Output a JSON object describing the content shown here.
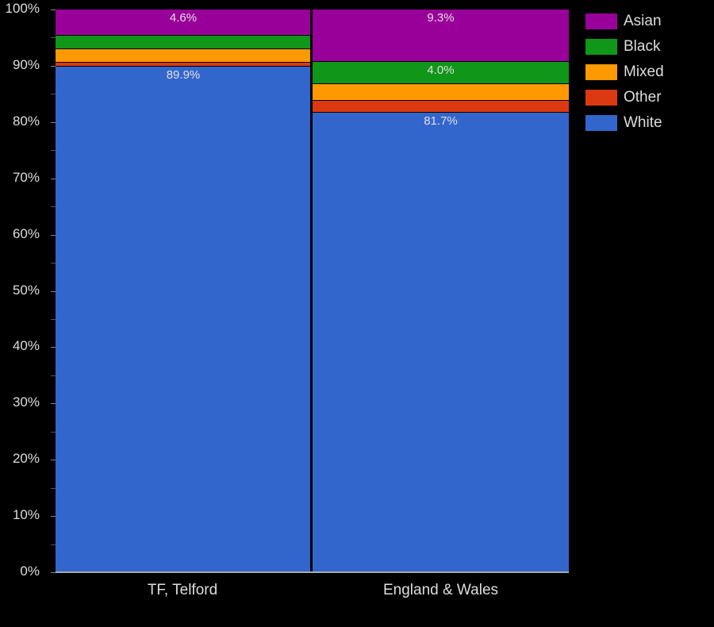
{
  "chart_data": {
    "type": "bar",
    "stacked": true,
    "title": "",
    "xlabel": "",
    "ylabel": "",
    "ylim": [
      0,
      100
    ],
    "y_ticks": [
      "0%",
      "10%",
      "20%",
      "30%",
      "40%",
      "50%",
      "60%",
      "70%",
      "80%",
      "90%",
      "100%"
    ],
    "categories": [
      "TF, Telford",
      "England & Wales"
    ],
    "series": [
      {
        "name": "White",
        "color": "#3366cc",
        "values": [
          89.9,
          81.7
        ]
      },
      {
        "name": "Other",
        "color": "#dc3912",
        "values": [
          0.7,
          2.1
        ]
      },
      {
        "name": "Mixed",
        "color": "#ff9900",
        "values": [
          2.4,
          2.9
        ]
      },
      {
        "name": "Black",
        "color": "#109618",
        "values": [
          2.4,
          4.0
        ]
      },
      {
        "name": "Asian",
        "color": "#990099",
        "values": [
          4.6,
          9.3
        ]
      }
    ],
    "data_labels": [
      {
        "category": "TF, Telford",
        "series": "Asian",
        "text": "4.6%"
      },
      {
        "category": "TF, Telford",
        "series": "White",
        "text": "89.9%"
      },
      {
        "category": "England & Wales",
        "series": "Asian",
        "text": "9.3%"
      },
      {
        "category": "England & Wales",
        "series": "Black",
        "text": "4.0%"
      },
      {
        "category": "England & Wales",
        "series": "White",
        "text": "81.7%"
      }
    ],
    "legend": {
      "position": "right",
      "entries": [
        "Asian",
        "Black",
        "Mixed",
        "Other",
        "White"
      ]
    },
    "grid": true
  },
  "bars": [
    {
      "label": "TF, Telford",
      "segments": [
        {
          "name": "Asian",
          "value": 4.6,
          "color": "#990099",
          "text": "4.6%"
        },
        {
          "name": "Black",
          "value": 2.4,
          "color": "#109618",
          "text": ""
        },
        {
          "name": "Mixed",
          "value": 2.4,
          "color": "#ff9900",
          "text": ""
        },
        {
          "name": "Other",
          "value": 0.7,
          "color": "#dc3912",
          "text": ""
        },
        {
          "name": "White",
          "value": 89.9,
          "color": "#3366cc",
          "text": "89.9%"
        }
      ]
    },
    {
      "label": "England & Wales",
      "segments": [
        {
          "name": "Asian",
          "value": 9.3,
          "color": "#990099",
          "text": "9.3%"
        },
        {
          "name": "Black",
          "value": 4.0,
          "color": "#109618",
          "text": "4.0%"
        },
        {
          "name": "Mixed",
          "value": 2.9,
          "color": "#ff9900",
          "text": ""
        },
        {
          "name": "Other",
          "value": 2.1,
          "color": "#dc3912",
          "text": ""
        },
        {
          "name": "White",
          "value": 81.7,
          "color": "#3366cc",
          "text": "81.7%"
        }
      ]
    }
  ],
  "legend": [
    {
      "label": "Asian",
      "color": "#990099"
    },
    {
      "label": "Black",
      "color": "#109618"
    },
    {
      "label": "Mixed",
      "color": "#ff9900"
    },
    {
      "label": "Other",
      "color": "#dc3912"
    },
    {
      "label": "White",
      "color": "#3366cc"
    }
  ]
}
